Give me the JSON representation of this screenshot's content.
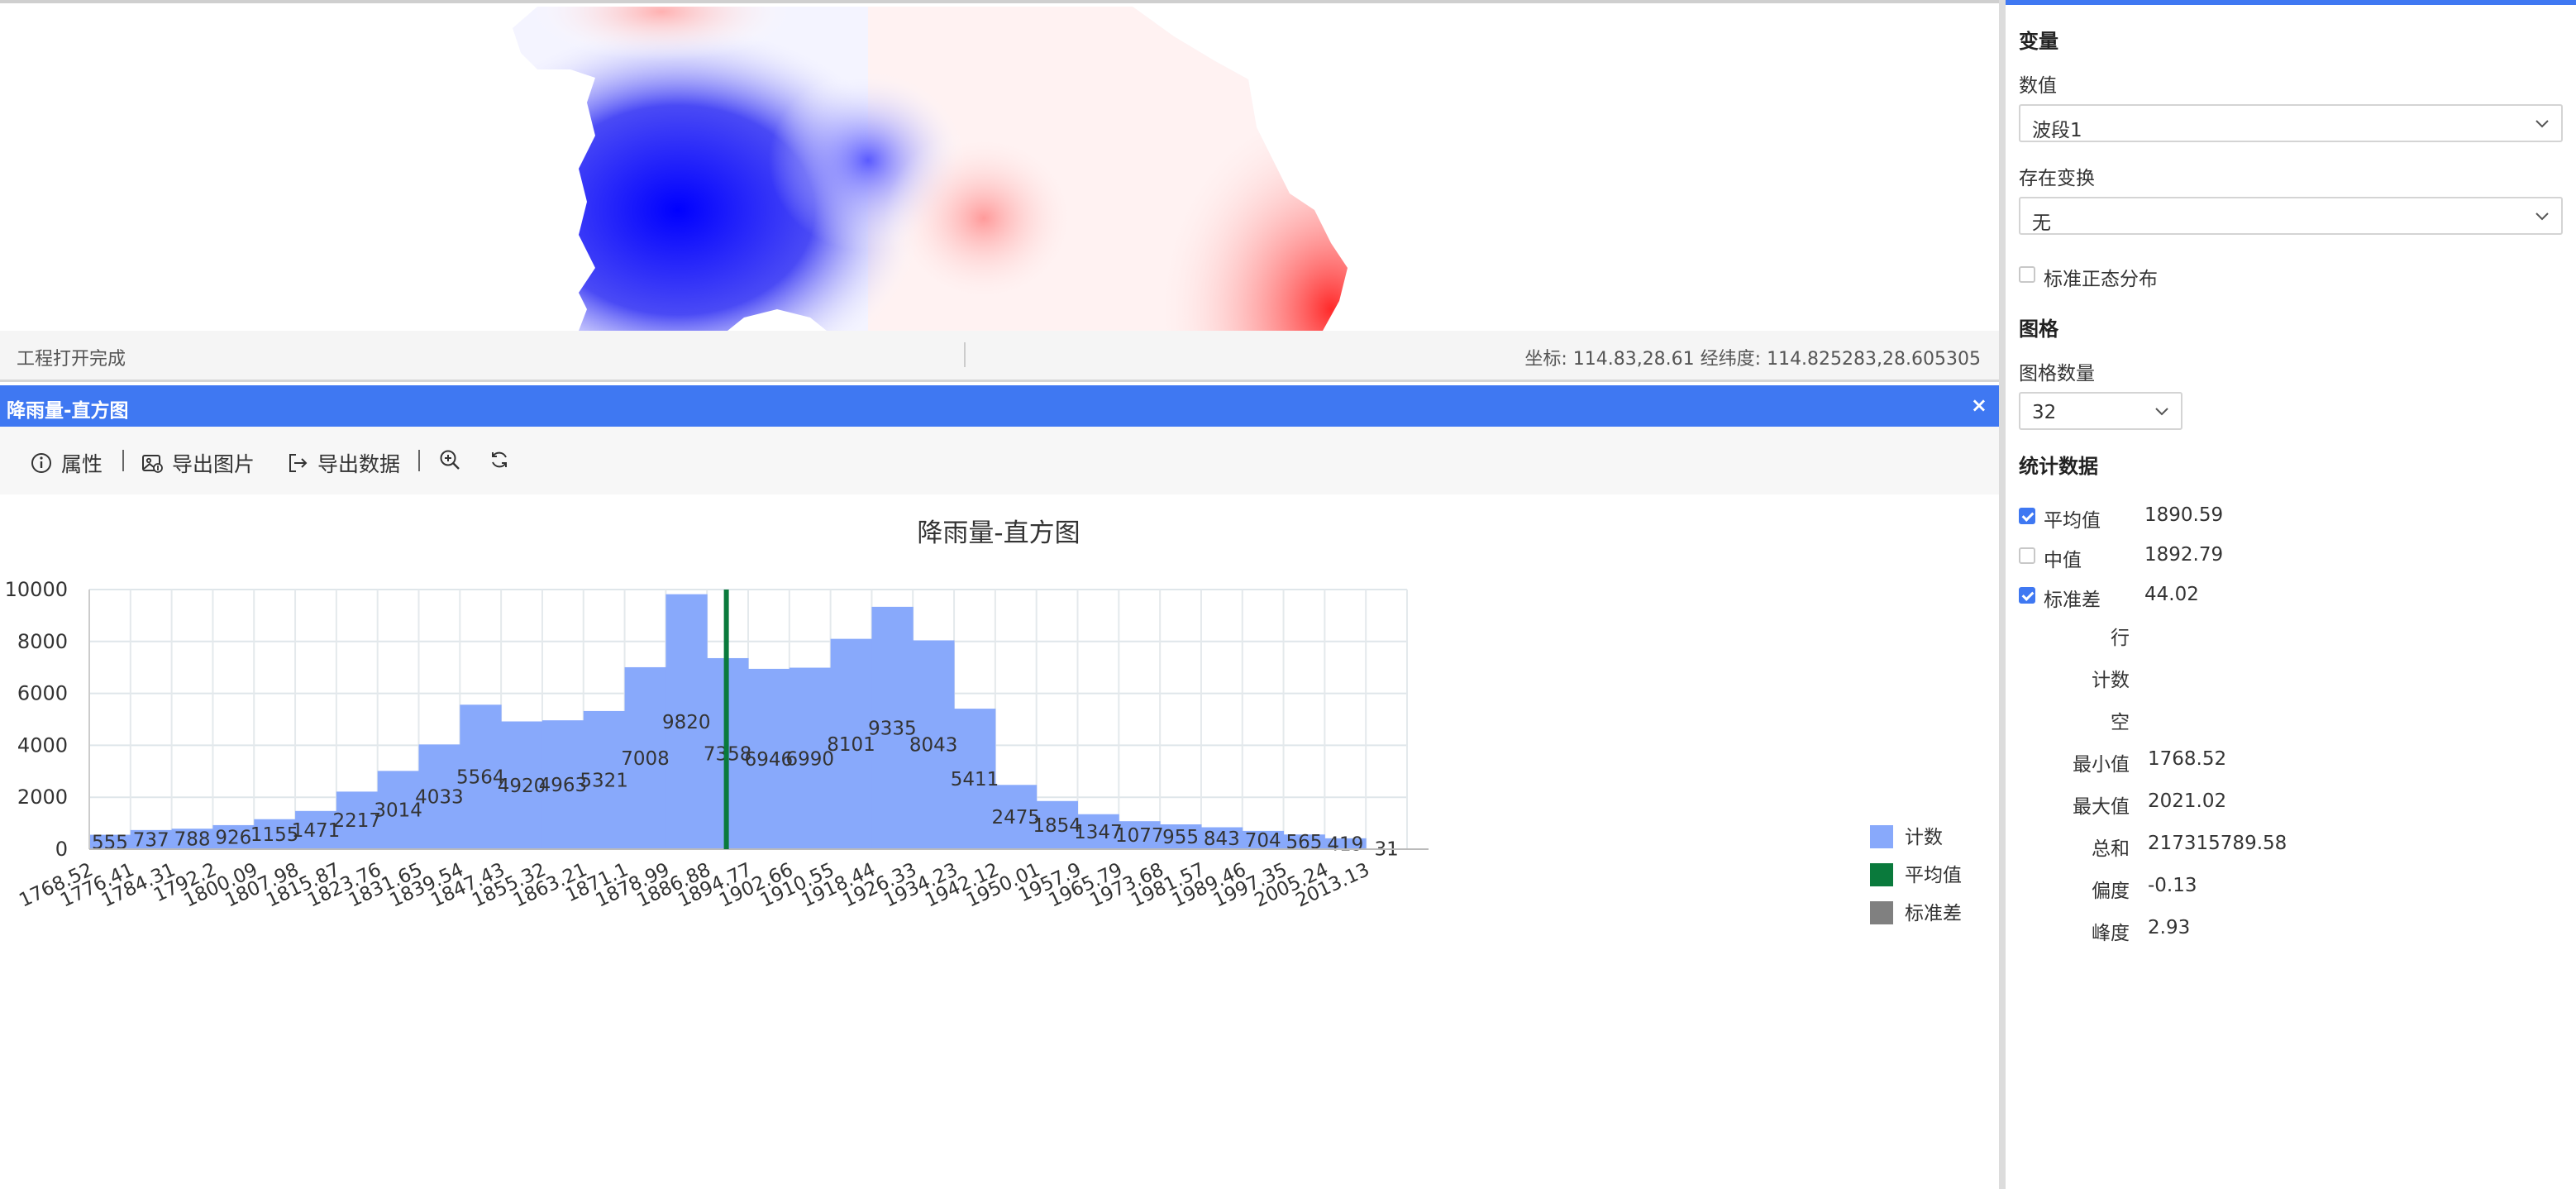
{
  "status": {
    "left_text": "工程打开完成",
    "coords_text": "坐标: 114.83,28.61 经纬度: 114.825283,28.605305"
  },
  "panel": {
    "title": "降雨量-直方图",
    "close_label": "×"
  },
  "toolbar": {
    "properties_label": "属性",
    "export_image_label": "导出图片",
    "export_data_label": "导出数据"
  },
  "chart_data": {
    "type": "bar",
    "title": "降雨量-直方图",
    "xlabel": "",
    "ylabel": "",
    "ylim": [
      0,
      10000
    ],
    "yticks": [
      0,
      2000,
      4000,
      6000,
      8000,
      10000
    ],
    "bin_edges": [
      "1768.52",
      "1776.41",
      "1784.31",
      "1792.2",
      "1800.09",
      "1807.98",
      "1815.87",
      "1823.76",
      "1831.65",
      "1839.54",
      "1847.43",
      "1855.32",
      "1863.21",
      "1871.1",
      "1878.99",
      "1886.88",
      "1894.77",
      "1902.66",
      "1910.55",
      "1918.44",
      "1926.33",
      "1934.23",
      "1942.12",
      "1950.01",
      "1957.9",
      "1965.79",
      "1973.68",
      "1981.57",
      "1989.46",
      "1997.35",
      "2005.24",
      "2013.13"
    ],
    "x_range": [
      1768.52,
      2021.02
    ],
    "series": [
      {
        "name": "计数",
        "color": "#88a9fb",
        "values": [
          555,
          737,
          788,
          926,
          1155,
          1471,
          2217,
          3014,
          4033,
          5564,
          4920,
          4963,
          5321,
          7008,
          9820,
          7358,
          6946,
          6990,
          8101,
          9335,
          8043,
          5411,
          2475,
          1854,
          1347,
          1077,
          955,
          843,
          704,
          565,
          419,
          31
        ]
      }
    ],
    "mean_line": {
      "name": "平均值",
      "x": 1890.59,
      "color": "#0a7a3c"
    },
    "std_series": {
      "name": "标准差",
      "color": "#808080"
    },
    "legend": {
      "placement": "right"
    },
    "grid": true
  },
  "sidebar": {
    "variable_heading": "变量",
    "value_label": "数值",
    "value_selected": "波段1",
    "transform_label": "存在变换",
    "transform_selected": "无",
    "normal_dist_label": "标准正态分布",
    "normal_dist_checked": false,
    "grid_heading": "图格",
    "grid_count_label": "图格数量",
    "grid_count_value": "32",
    "stats_heading": "统计数据",
    "checks": [
      {
        "label": "平均值",
        "value": "1890.59",
        "checked": true
      },
      {
        "label": "中值",
        "value": "1892.79",
        "checked": false
      },
      {
        "label": "标准差",
        "value": "44.02",
        "checked": true
      }
    ],
    "stats": [
      {
        "label": "行",
        "value": ""
      },
      {
        "label": "计数",
        "value": ""
      },
      {
        "label": "空",
        "value": ""
      },
      {
        "label": "最小值",
        "value": "1768.52"
      },
      {
        "label": "最大值",
        "value": "2021.02"
      },
      {
        "label": "总和",
        "value": "217315789.58"
      },
      {
        "label": "偏度",
        "value": "-0.13"
      },
      {
        "label": "峰度",
        "value": "2.93"
      }
    ]
  }
}
